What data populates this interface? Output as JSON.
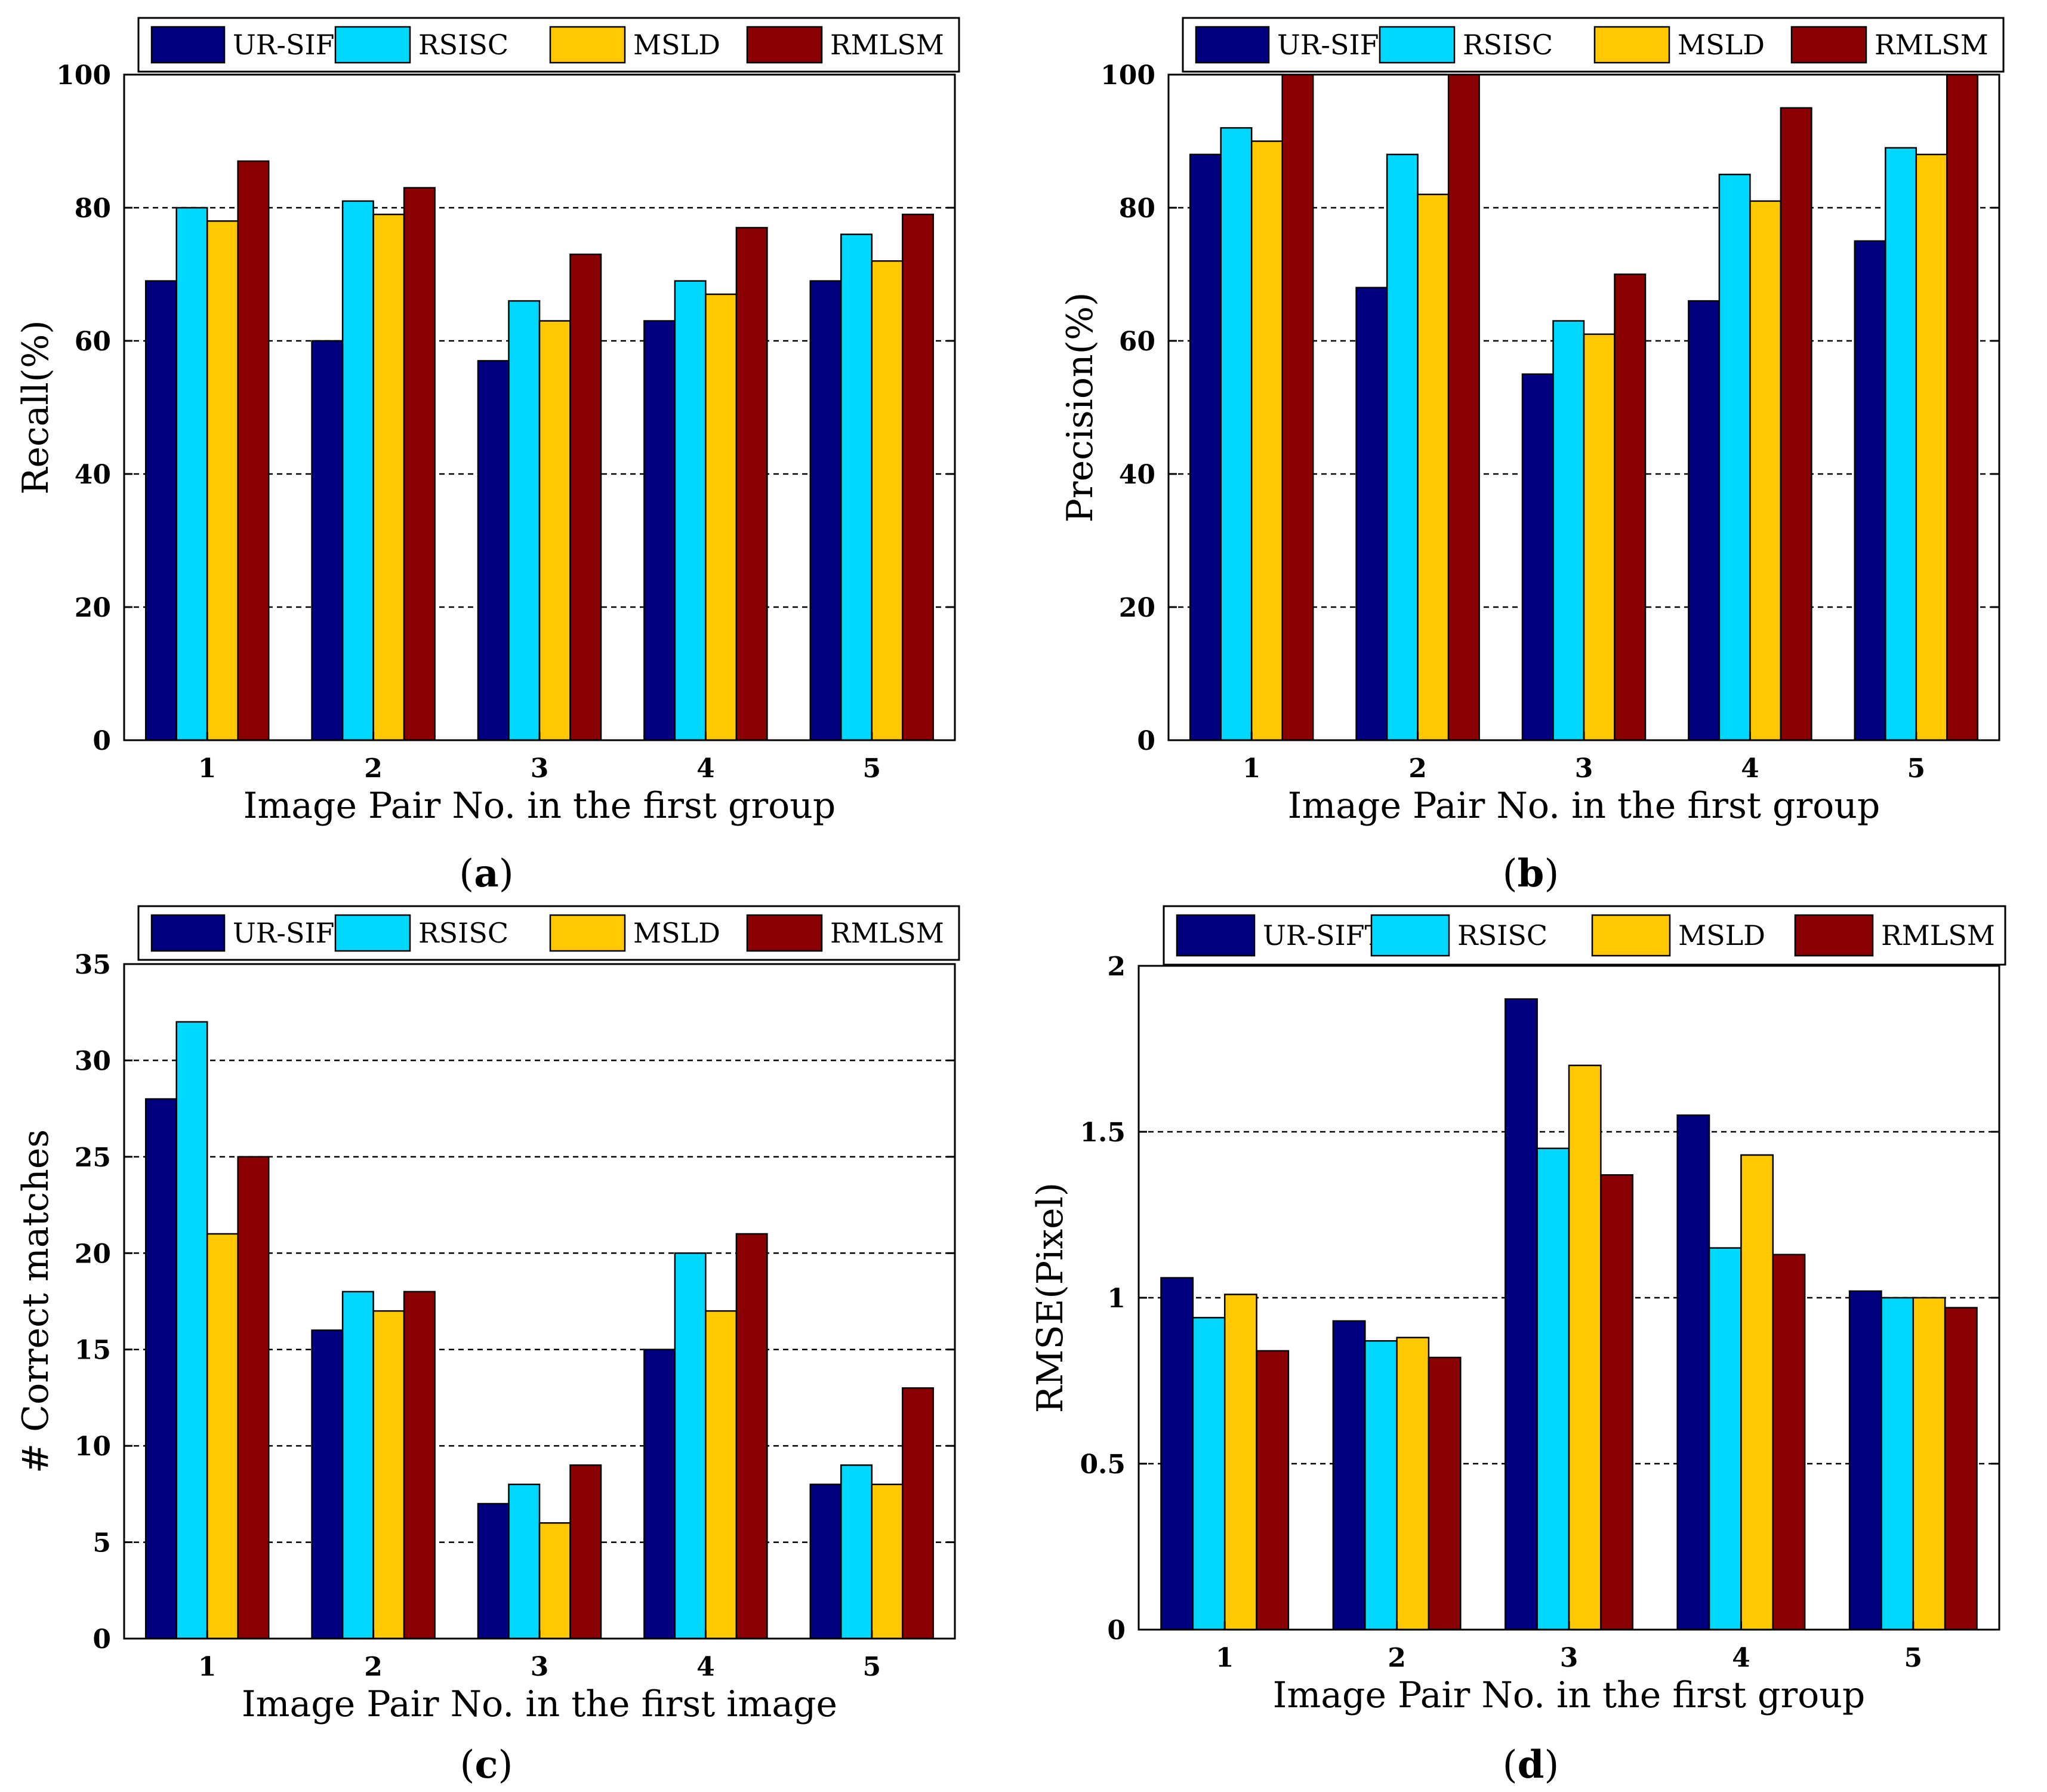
{
  "colors": {
    "series": [
      "#000080",
      "#00D8FF",
      "#FFC800",
      "#8B0000"
    ],
    "axis": "#000000",
    "grid": "#000000",
    "background": "#FFFFFF"
  },
  "chart_data": [
    {
      "panel": "a",
      "type": "bar",
      "categories": [
        "1",
        "2",
        "3",
        "4",
        "5"
      ],
      "series": [
        {
          "name": "UR-SIFT",
          "values": [
            69,
            60,
            57,
            63,
            69
          ]
        },
        {
          "name": "RSISC",
          "values": [
            80,
            81,
            66,
            69,
            76
          ]
        },
        {
          "name": "MSLD",
          "values": [
            78,
            79,
            63,
            67,
            72
          ]
        },
        {
          "name": "RMLSM",
          "values": [
            87,
            83,
            73,
            77,
            79
          ]
        }
      ],
      "title": "",
      "xlabel": "Image Pair No. in the first group",
      "ylabel": "Recall(%)",
      "ylim": [
        0,
        100
      ],
      "yticks": [
        "0",
        "20",
        "40",
        "60",
        "80",
        "100"
      ],
      "grid": "dashed horizontal",
      "legend_position": "top",
      "caption_open": "(",
      "caption_letter": "a",
      "caption_close": ")"
    },
    {
      "panel": "b",
      "type": "bar",
      "categories": [
        "1",
        "2",
        "3",
        "4",
        "5"
      ],
      "series": [
        {
          "name": "UR-SIFT",
          "values": [
            88,
            68,
            55,
            66,
            75
          ]
        },
        {
          "name": "RSISC",
          "values": [
            92,
            88,
            63,
            85,
            89
          ]
        },
        {
          "name": "MSLD",
          "values": [
            90,
            82,
            61,
            81,
            88
          ]
        },
        {
          "name": "RMLSM",
          "values": [
            100,
            100,
            70,
            95,
            100
          ]
        }
      ],
      "title": "",
      "xlabel": "Image Pair No. in the first group",
      "ylabel": "Precision(%)",
      "ylim": [
        0,
        100
      ],
      "yticks": [
        "0",
        "20",
        "40",
        "60",
        "80",
        "100"
      ],
      "grid": "dashed horizontal",
      "legend_position": "top",
      "caption_open": "(",
      "caption_letter": "b",
      "caption_close": ")"
    },
    {
      "panel": "c",
      "type": "bar",
      "categories": [
        "1",
        "2",
        "3",
        "4",
        "5"
      ],
      "series": [
        {
          "name": "UR-SIFT",
          "values": [
            28,
            16,
            7,
            15,
            8
          ]
        },
        {
          "name": "RSISC",
          "values": [
            32,
            18,
            8,
            20,
            9
          ]
        },
        {
          "name": "MSLD",
          "values": [
            21,
            17,
            6,
            17,
            8
          ]
        },
        {
          "name": "RMLSM",
          "values": [
            25,
            18,
            9,
            21,
            13
          ]
        }
      ],
      "title": "",
      "xlabel": "Image Pair No. in the first image",
      "ylabel": "# Correct matches",
      "ylim": [
        0,
        35
      ],
      "yticks": [
        "0",
        "5",
        "10",
        "15",
        "20",
        "25",
        "30",
        "35"
      ],
      "grid": "dashed horizontal",
      "legend_position": "top",
      "caption_open": "(",
      "caption_letter": "c",
      "caption_close": ")"
    },
    {
      "panel": "d",
      "type": "bar",
      "categories": [
        "1",
        "2",
        "3",
        "4",
        "5"
      ],
      "series": [
        {
          "name": "UR-SIFT",
          "values": [
            1.06,
            0.93,
            1.9,
            1.55,
            1.02
          ]
        },
        {
          "name": "RSISC",
          "values": [
            0.94,
            0.87,
            1.45,
            1.15,
            1.0
          ]
        },
        {
          "name": "MSLD",
          "values": [
            1.01,
            0.88,
            1.7,
            1.43,
            1.0
          ]
        },
        {
          "name": "RMLSM",
          "values": [
            0.84,
            0.82,
            1.37,
            1.13,
            0.97
          ]
        }
      ],
      "title": "",
      "xlabel": "Image Pair No. in the first group",
      "ylabel": "RMSE(Pixel)",
      "ylim": [
        0,
        2
      ],
      "yticks": [
        "0",
        "0.5",
        "1",
        "1.5",
        "2"
      ],
      "grid": "dashed horizontal",
      "legend_position": "top",
      "caption_open": "(",
      "caption_letter": "d",
      "caption_close": ")"
    }
  ]
}
